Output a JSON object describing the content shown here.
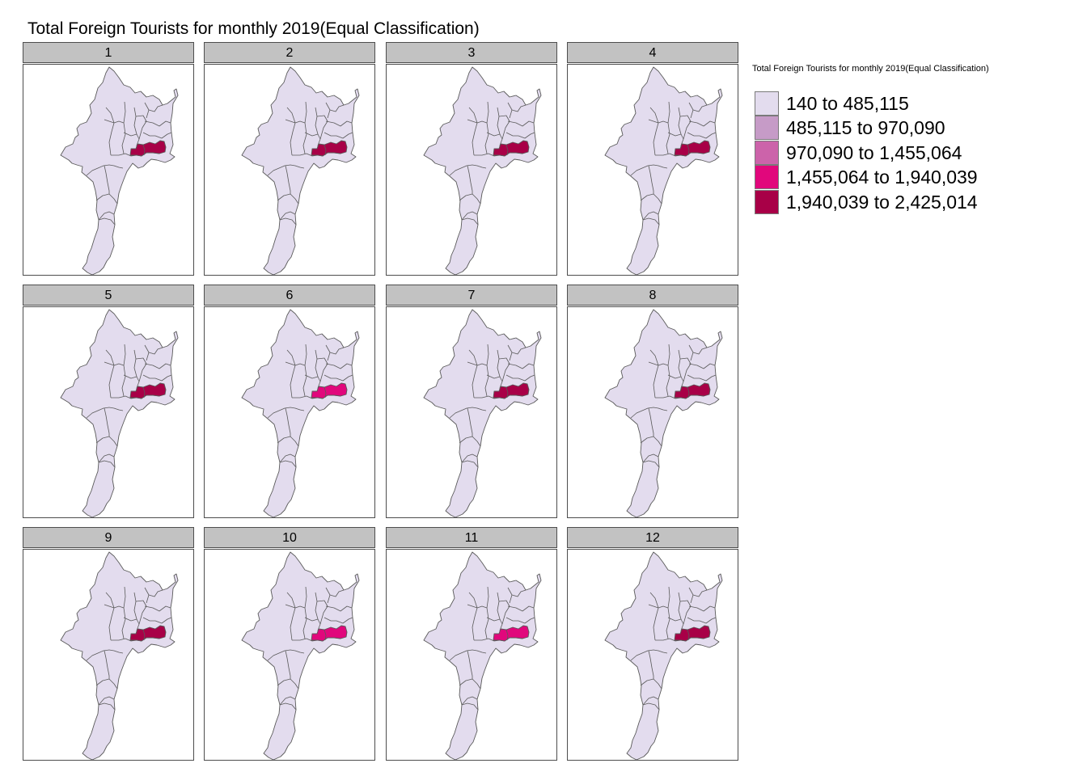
{
  "map": {
    "title": "Total Foreign Tourists for monthly 2019(Equal Classification)",
    "legend_title": "Total Foreign Tourists for monthly 2019(Equal Classification)",
    "legend": [
      {
        "label": "140 to 485,115",
        "color": "#e3dcee"
      },
      {
        "label": "485,115 to 970,090",
        "color": "#c69bc7"
      },
      {
        "label": "970,090 to 1,455,064",
        "color": "#cc63aa"
      },
      {
        "label": "1,455,064 to 1,940,039",
        "color": "#e1077c"
      },
      {
        "label": "1,940,039 to 2,425,014",
        "color": "#a80047"
      }
    ],
    "base_color": "#e3dcee",
    "border_color": "#5a5a5a",
    "facets": [
      {
        "label": "1",
        "highlight_class": 4
      },
      {
        "label": "2",
        "highlight_class": 4
      },
      {
        "label": "3",
        "highlight_class": 4
      },
      {
        "label": "4",
        "highlight_class": 4
      },
      {
        "label": "5",
        "highlight_class": 4
      },
      {
        "label": "6",
        "highlight_class": 3
      },
      {
        "label": "7",
        "highlight_class": 4
      },
      {
        "label": "8",
        "highlight_class": 4
      },
      {
        "label": "9",
        "highlight_class": 4
      },
      {
        "label": "10",
        "highlight_class": 3
      },
      {
        "label": "11",
        "highlight_class": 3
      },
      {
        "label": "12",
        "highlight_class": 4
      }
    ]
  }
}
